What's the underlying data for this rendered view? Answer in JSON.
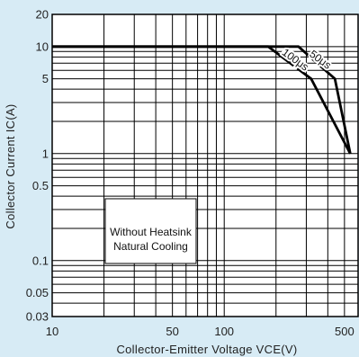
{
  "chart_data": {
    "type": "line",
    "title": "",
    "xlabel": "Collector-Emitter Voltage",
    "xlabel_sub": "VCE(V)",
    "ylabel": "Collector Current",
    "ylabel_sub": "IC(A)",
    "xscale": "log",
    "yscale": "log",
    "xlim": [
      10,
      600
    ],
    "ylim": [
      0.03,
      20
    ],
    "grid": true,
    "x_ticks": [
      {
        "value": 10,
        "label": "10"
      },
      {
        "value": 50,
        "label": "50"
      },
      {
        "value": 100,
        "label": "100"
      },
      {
        "value": 500,
        "label": "500"
      }
    ],
    "y_ticks": [
      {
        "value": 20,
        "label": "20"
      },
      {
        "value": 10,
        "label": "10"
      },
      {
        "value": 5,
        "label": "5"
      },
      {
        "value": 1,
        "label": "1"
      },
      {
        "value": 0.5,
        "label": "0.5"
      },
      {
        "value": 0.1,
        "label": "0.1"
      },
      {
        "value": 0.05,
        "label": "0.05"
      },
      {
        "value": 0.03,
        "label": "0.03"
      }
    ],
    "series": [
      {
        "name": "100μs",
        "x": [
          10,
          180,
          320,
          540
        ],
        "y": [
          10,
          10,
          5,
          1
        ]
      },
      {
        "name": "50μs",
        "x": [
          10,
          270,
          440,
          540
        ],
        "y": [
          10,
          10,
          5,
          1
        ]
      }
    ],
    "annotation": [
      "Without Heatsink",
      "Natural Cooling"
    ]
  },
  "colors": {
    "background": "#d7ebf5",
    "plot_area": "#ffffff",
    "grid": "#000000",
    "curve": "#000000"
  }
}
